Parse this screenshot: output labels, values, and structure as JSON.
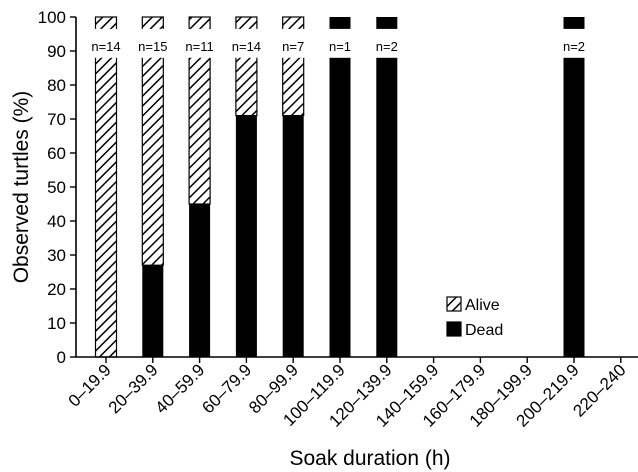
{
  "chart_data": {
    "type": "bar",
    "stacked": true,
    "title": "",
    "xlabel": "Soak duration (h)",
    "ylabel": "Observed turtles (%)",
    "ylim": [
      0,
      100
    ],
    "yticks": [
      0,
      10,
      20,
      30,
      40,
      50,
      60,
      70,
      80,
      90,
      100
    ],
    "categories": [
      "0–19.9",
      "20–39.9",
      "40–59.9",
      "60–79.9",
      "80–99.9",
      "100–119.9",
      "120–139.9",
      "140–159.9",
      "160–179.9",
      "180–199.9",
      "200–219.9",
      "220–240"
    ],
    "series": [
      {
        "name": "Dead",
        "color": "#000000",
        "fill": "solid",
        "values": [
          0,
          27,
          45,
          71,
          71,
          100,
          100,
          null,
          null,
          null,
          100,
          null
        ]
      },
      {
        "name": "Alive",
        "color": "#000000",
        "fill": "hatched",
        "values": [
          100,
          73,
          55,
          29,
          29,
          0,
          0,
          null,
          null,
          null,
          0,
          null
        ]
      }
    ],
    "n_labels": [
      "n=14",
      "n=15",
      "n=11",
      "n=14",
      "n=7",
      "n=1",
      "n=2",
      "",
      "",
      "",
      "n=2",
      ""
    ],
    "legend": {
      "position": "bottom-center",
      "entries": [
        "Alive",
        "Dead"
      ]
    },
    "grid": false
  }
}
